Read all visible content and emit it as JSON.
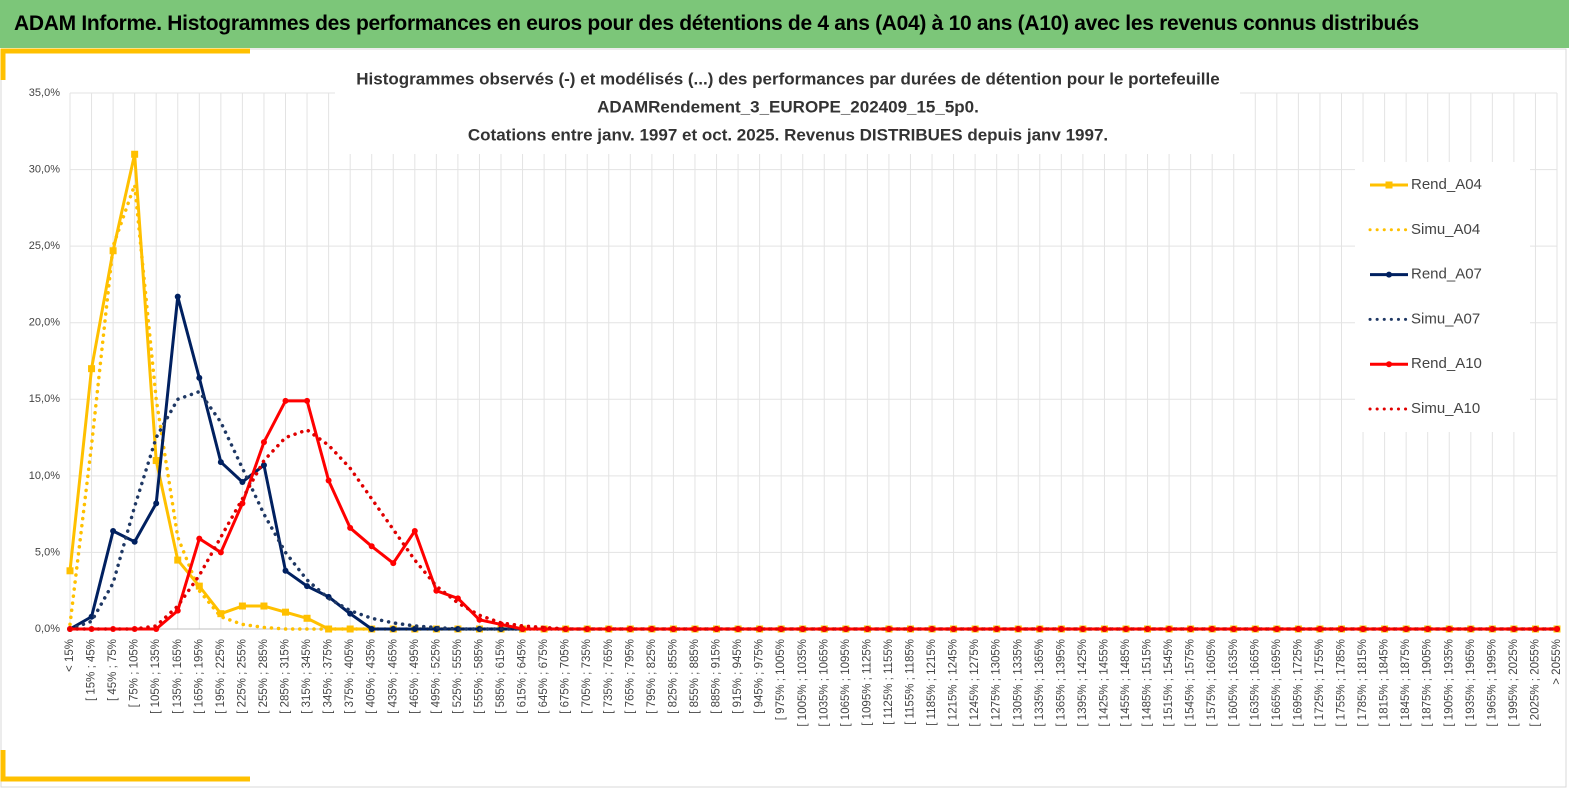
{
  "header": {
    "title": "ADAM Informe. Histogrammes des performances en euros pour des détentions de 4 ans (A04) à 10 ans (A10) avec les revenus connus distribués"
  },
  "chart_data": {
    "type": "line",
    "title": [
      "Histogrammes observés (-) et modélisés (...) des performances  par durées de détention pour le portefeuille",
      "ADAMRendement_3_EUROPE_202409_15_5p0.",
      "Cotations entre janv. 1997 et oct. 2025. Revenus DISTRIBUES depuis janv 1997."
    ],
    "categories": [
      "< 15%",
      "[ 15% ; 45%",
      "[ 45% ; 75%",
      "[ 75% ; 105%",
      "[ 105% ; 135%",
      "[ 135% ; 165%",
      "[ 165% ; 195%",
      "[ 195% ; 225%",
      "[ 225% ; 255%",
      "[ 255% ; 285%",
      "[ 285% ; 315%",
      "[ 315% ; 345%",
      "[ 345% ; 375%",
      "[ 375% ; 405%",
      "[ 405% ; 435%",
      "[ 435% ; 465%",
      "[ 465% ; 495%",
      "[ 495% ; 525%",
      "[ 525% ; 555%",
      "[ 555% ; 585%",
      "[ 585% ; 615%",
      "[ 615% ; 645%",
      "[ 645% ; 675%",
      "[ 675% ; 705%",
      "[ 705% ; 735%",
      "[ 735% ; 765%",
      "[ 765% ; 795%",
      "[ 795% ; 825%",
      "[ 825% ; 855%",
      "[ 855% ; 885%",
      "[ 885% ; 915%",
      "[ 915% ; 945%",
      "[ 945% ; 975%",
      "[ 975% ; 1005%",
      "[ 1005% ; 1035%",
      "[ 1035% ; 1065%",
      "[ 1065% ; 1095%",
      "[ 1095% ; 1125%",
      "[ 1125% ; 1155%",
      "[ 1155% ; 1185%",
      "[ 1185% ; 1215%",
      "[ 1215% ; 1245%",
      "[ 1245% ; 1275%",
      "[ 1275% ; 1305%",
      "[ 1305% ; 1335%",
      "[ 1335% ; 1365%",
      "[ 1365% ; 1395%",
      "[ 1395% ; 1425%",
      "[ 1425% ; 1455%",
      "[ 1455% ; 1485%",
      "[ 1485% ; 1515%",
      "[ 1515% ; 1545%",
      "[ 1545% ; 1575%",
      "[ 1575% ; 1605%",
      "[ 1605% ; 1635%",
      "[ 1635% ; 1665%",
      "[ 1665% ; 1695%",
      "[ 1695% ; 1725%",
      "[ 1725% ; 1755%",
      "[ 1755% ; 1785%",
      "[ 1785% ; 1815%",
      "[ 1815% ; 1845%",
      "[ 1845% ; 1875%",
      "[ 1875% ; 1905%",
      "[ 1905% ; 1935%",
      "[ 1935% ; 1965%",
      "[ 1965% ; 1995%",
      "[ 1995% ; 2025%",
      "[ 2025% ; 2055%",
      "> 2055%"
    ],
    "series": [
      {
        "name": "Rend_A04",
        "color": "#ffc000",
        "style": "solid",
        "marker": "square",
        "values": [
          3.8,
          17,
          24.7,
          31,
          11,
          4.5,
          2.8,
          1.0,
          1.5,
          1.5,
          1.1,
          0.7,
          0,
          0,
          0,
          0,
          0,
          0,
          0,
          0,
          0,
          0,
          0,
          0,
          0,
          0,
          0,
          0,
          0,
          0,
          0,
          0,
          0,
          0,
          0,
          0,
          0,
          0,
          0,
          0,
          0,
          0,
          0,
          0,
          0,
          0,
          0,
          0,
          0,
          0,
          0,
          0,
          0,
          0,
          0,
          0,
          0,
          0,
          0,
          0,
          0,
          0,
          0,
          0,
          0,
          0,
          0,
          0,
          0,
          0
        ]
      },
      {
        "name": "Simu_A04",
        "color": "#ffc000",
        "style": "dotted",
        "marker": "none",
        "values": [
          0.3,
          12,
          25,
          29,
          15,
          6,
          2.5,
          0.8,
          0.3,
          0.1,
          0,
          0,
          0,
          0,
          0,
          0,
          0,
          0,
          0,
          0,
          0,
          0,
          0,
          0,
          0,
          0,
          0,
          0,
          0,
          0,
          0,
          0,
          0,
          0,
          0,
          0,
          0,
          0,
          0,
          0,
          0,
          0,
          0,
          0,
          0,
          0,
          0,
          0,
          0,
          0,
          0,
          0,
          0,
          0,
          0,
          0,
          0,
          0,
          0,
          0,
          0,
          0,
          0,
          0,
          0,
          0,
          0,
          0,
          0,
          0
        ]
      },
      {
        "name": "Rend_A07",
        "color": "#002060",
        "style": "solid",
        "marker": "circle",
        "values": [
          0,
          0.8,
          6.4,
          5.7,
          8.2,
          21.7,
          16.4,
          10.9,
          9.6,
          10.7,
          3.8,
          2.8,
          2.1,
          1.0,
          0,
          0,
          0,
          0,
          0,
          0,
          0,
          0,
          0,
          0,
          0,
          0,
          0,
          0,
          0,
          0,
          0,
          0,
          0,
          0,
          0,
          0,
          0,
          0,
          0,
          0,
          0,
          0,
          0,
          0,
          0,
          0,
          0,
          0,
          0,
          0,
          0,
          0,
          0,
          0,
          0,
          0,
          0,
          0,
          0,
          0,
          0,
          0,
          0,
          0,
          0,
          0,
          0,
          0,
          0,
          0
        ]
      },
      {
        "name": "Simu_A07",
        "color": "#1f3864",
        "style": "dotted",
        "marker": "none",
        "values": [
          0,
          0.5,
          3,
          8,
          12.5,
          15,
          15.5,
          13.5,
          10.5,
          7.5,
          5,
          3.2,
          2,
          1.2,
          0.7,
          0.4,
          0.2,
          0.1,
          0,
          0,
          0,
          0,
          0,
          0,
          0,
          0,
          0,
          0,
          0,
          0,
          0,
          0,
          0,
          0,
          0,
          0,
          0,
          0,
          0,
          0,
          0,
          0,
          0,
          0,
          0,
          0,
          0,
          0,
          0,
          0,
          0,
          0,
          0,
          0,
          0,
          0,
          0,
          0,
          0,
          0,
          0,
          0,
          0,
          0,
          0,
          0,
          0,
          0,
          0,
          0
        ]
      },
      {
        "name": "Rend_A10",
        "color": "#ff0000",
        "style": "solid",
        "marker": "circle",
        "values": [
          0,
          0,
          0,
          0,
          0,
          1.2,
          5.9,
          5.0,
          8.2,
          12.2,
          14.9,
          14.9,
          9.7,
          6.6,
          5.4,
          4.3,
          6.4,
          2.5,
          2.0,
          0.6,
          0.3,
          0,
          0,
          0,
          0,
          0,
          0,
          0,
          0,
          0,
          0,
          0,
          0,
          0,
          0,
          0,
          0,
          0,
          0,
          0,
          0,
          0,
          0,
          0,
          0,
          0,
          0,
          0,
          0,
          0,
          0,
          0,
          0,
          0,
          0,
          0,
          0,
          0,
          0,
          0,
          0,
          0,
          0,
          0,
          0,
          0,
          0,
          0,
          0,
          0
        ]
      },
      {
        "name": "Simu_A10",
        "color": "#e00000",
        "style": "dotted",
        "marker": "none",
        "values": [
          0,
          0,
          0,
          0,
          0.2,
          1.5,
          3.5,
          6,
          8.5,
          11,
          12.5,
          13,
          12,
          10.5,
          8.5,
          6.5,
          4.5,
          2.8,
          1.7,
          0.9,
          0.4,
          0.2,
          0.1,
          0,
          0,
          0,
          0,
          0,
          0,
          0,
          0,
          0,
          0,
          0,
          0,
          0,
          0,
          0,
          0,
          0,
          0,
          0,
          0,
          0,
          0,
          0,
          0,
          0,
          0,
          0,
          0,
          0,
          0,
          0,
          0,
          0,
          0,
          0,
          0,
          0,
          0,
          0,
          0,
          0,
          0,
          0,
          0,
          0,
          0,
          0
        ]
      }
    ],
    "ylim": [
      0,
      35
    ],
    "yticks": [
      {
        "value": 0,
        "label": "0,0%"
      },
      {
        "value": 5,
        "label": "5,0%"
      },
      {
        "value": 10,
        "label": "10,0%"
      },
      {
        "value": 15,
        "label": "15,0%"
      },
      {
        "value": 20,
        "label": "20,0%"
      },
      {
        "value": 25,
        "label": "25,0%"
      },
      {
        "value": 30,
        "label": "30,0%"
      },
      {
        "value": 35,
        "label": "35,0%"
      }
    ],
    "grid": true,
    "legend": "right"
  }
}
